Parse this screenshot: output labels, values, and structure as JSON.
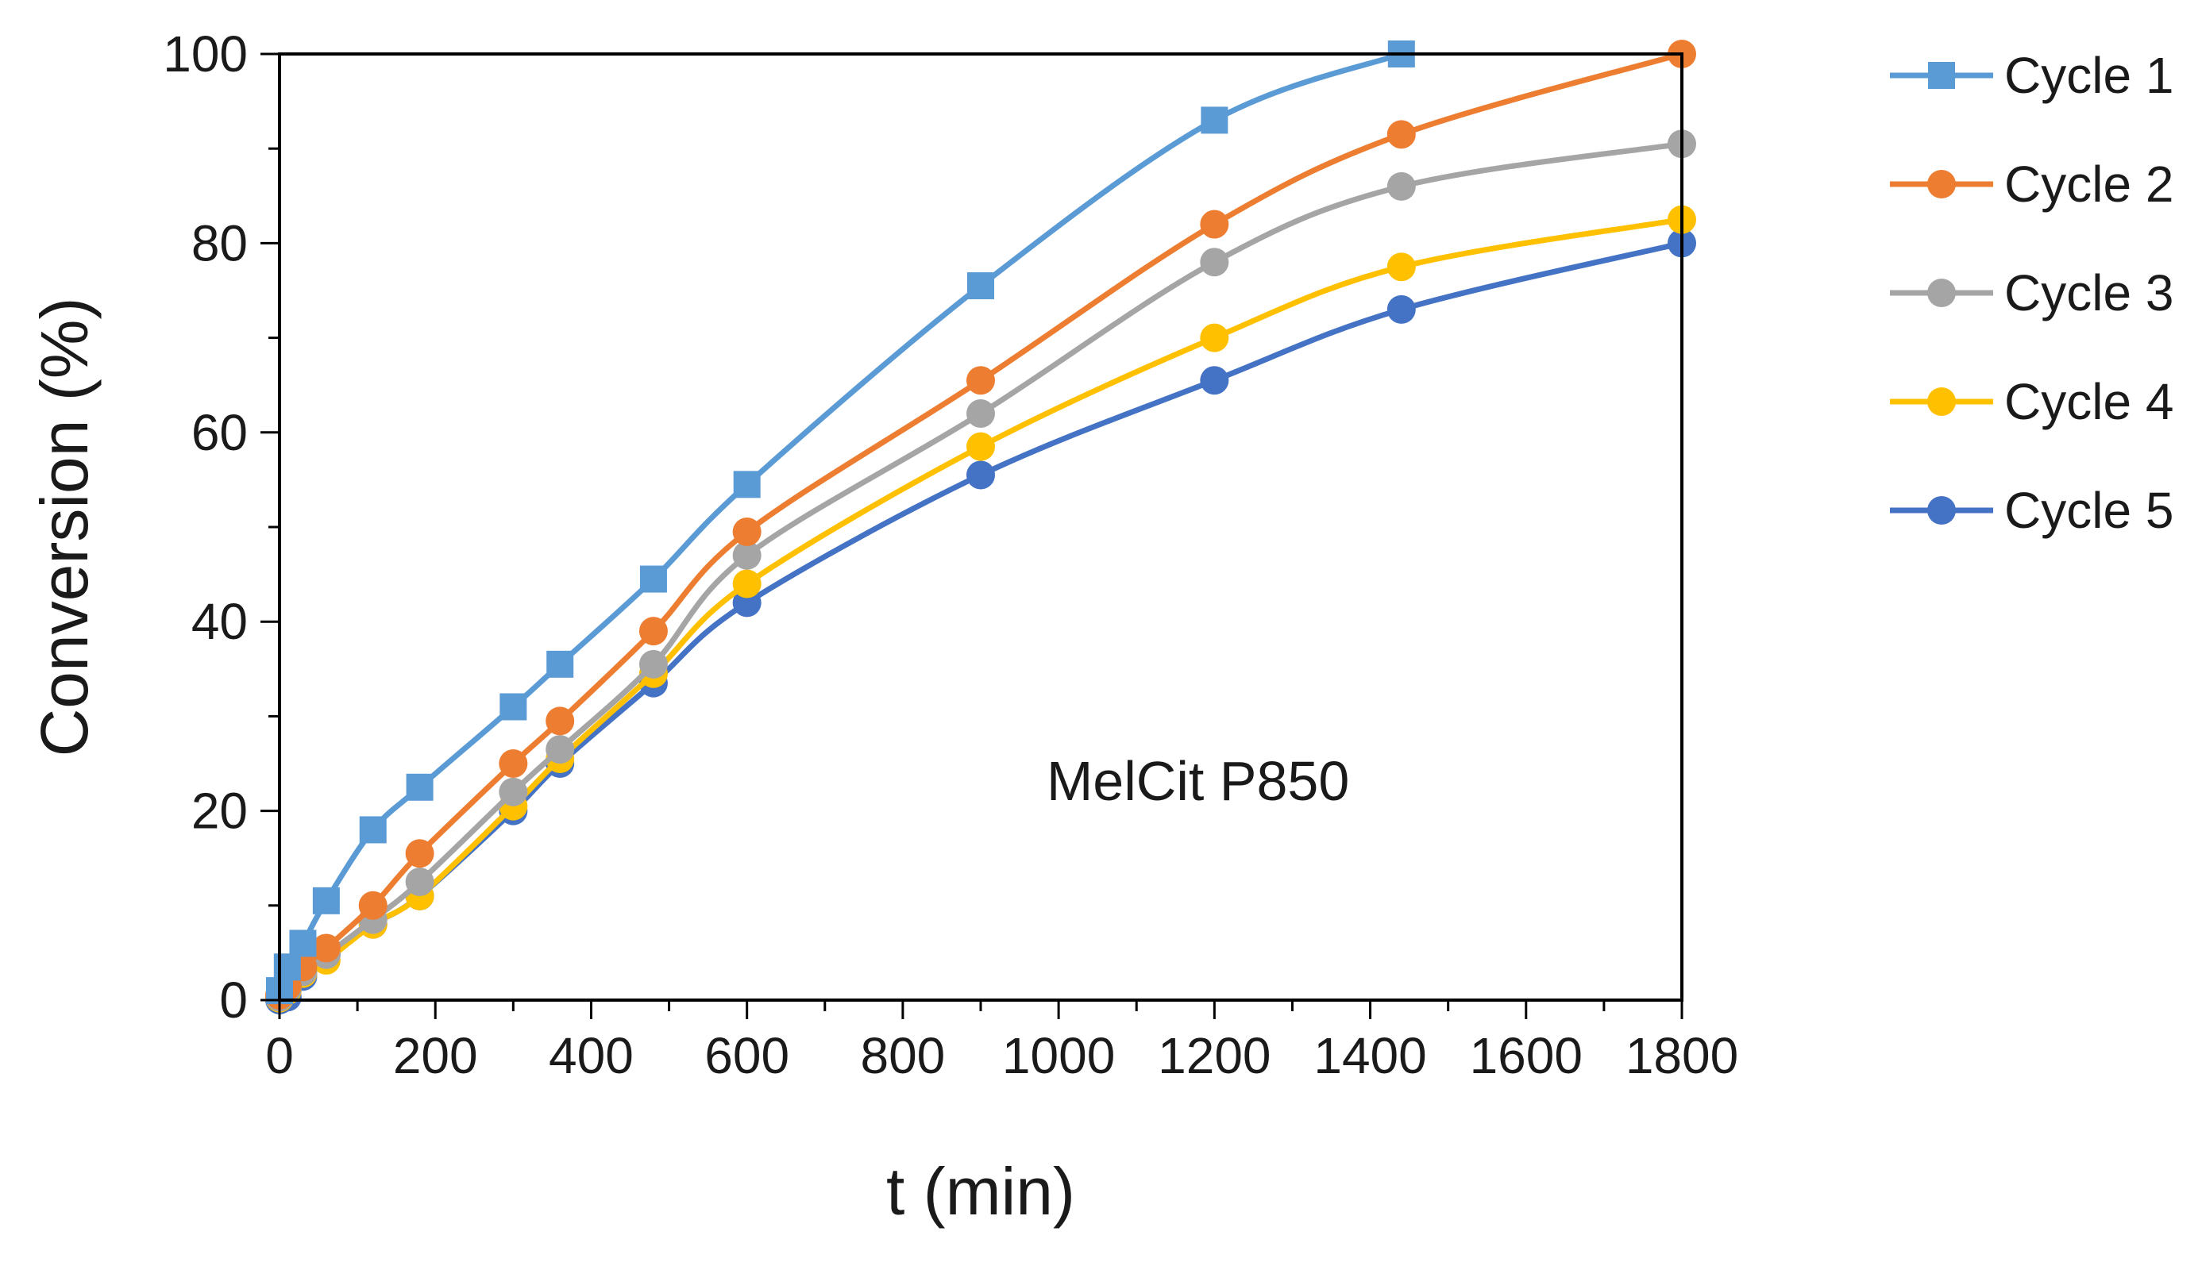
{
  "chart_data": {
    "type": "line",
    "title": "",
    "xlabel": "t (min)",
    "ylabel": "Conversion (%)",
    "xlim": [
      0,
      1800
    ],
    "ylim": [
      0,
      100
    ],
    "x_ticks": [
      0,
      200,
      400,
      600,
      800,
      1000,
      1200,
      1400,
      1600,
      1800
    ],
    "y_ticks": [
      0,
      20,
      40,
      60,
      80,
      100
    ],
    "grid": false,
    "legend_position": "right",
    "annotation": "MelCit P850",
    "series": [
      {
        "name": "Cycle 1",
        "color": "#5B9BD5",
        "marker": "square",
        "x": [
          0,
          10,
          30,
          60,
          120,
          180,
          300,
          360,
          480,
          600,
          900,
          1200,
          1440
        ],
        "y": [
          1,
          3.5,
          6,
          10.5,
          18,
          22.5,
          31,
          35.5,
          44.5,
          54.5,
          75.5,
          93,
          100
        ]
      },
      {
        "name": "Cycle 2",
        "color": "#ED7D31",
        "marker": "circle",
        "x": [
          0,
          10,
          30,
          60,
          120,
          180,
          300,
          360,
          480,
          600,
          900,
          1200,
          1440,
          1800
        ],
        "y": [
          0.5,
          1.5,
          3.5,
          5.5,
          10,
          15.5,
          25,
          29.5,
          39,
          49.5,
          65.5,
          82,
          91.5,
          100
        ]
      },
      {
        "name": "Cycle 3",
        "color": "#A5A5A5",
        "marker": "circle",
        "x": [
          0,
          10,
          30,
          60,
          120,
          180,
          300,
          360,
          480,
          600,
          900,
          1200,
          1440,
          1800
        ],
        "y": [
          0.3,
          1.2,
          3,
          4.8,
          8.5,
          12.5,
          22,
          26.5,
          35.5,
          47,
          62,
          78,
          86,
          90.5
        ]
      },
      {
        "name": "Cycle 4",
        "color": "#FFC000",
        "marker": "circle",
        "x": [
          0,
          10,
          30,
          60,
          120,
          180,
          300,
          360,
          480,
          600,
          900,
          1200,
          1440,
          1800
        ],
        "y": [
          0.2,
          1,
          2.8,
          4.2,
          8,
          11,
          20.5,
          25.5,
          34.5,
          44,
          58.5,
          70,
          77.5,
          82.5
        ]
      },
      {
        "name": "Cycle 5",
        "color": "#4472C4",
        "marker": "circle",
        "x": [
          0,
          10,
          30,
          60,
          120,
          180,
          300,
          360,
          480,
          600,
          900,
          1200,
          1440,
          1800
        ],
        "y": [
          0,
          0.3,
          2.5,
          4.8,
          8,
          11,
          20,
          25,
          33.5,
          42,
          55.5,
          65.5,
          73,
          80
        ]
      }
    ]
  }
}
